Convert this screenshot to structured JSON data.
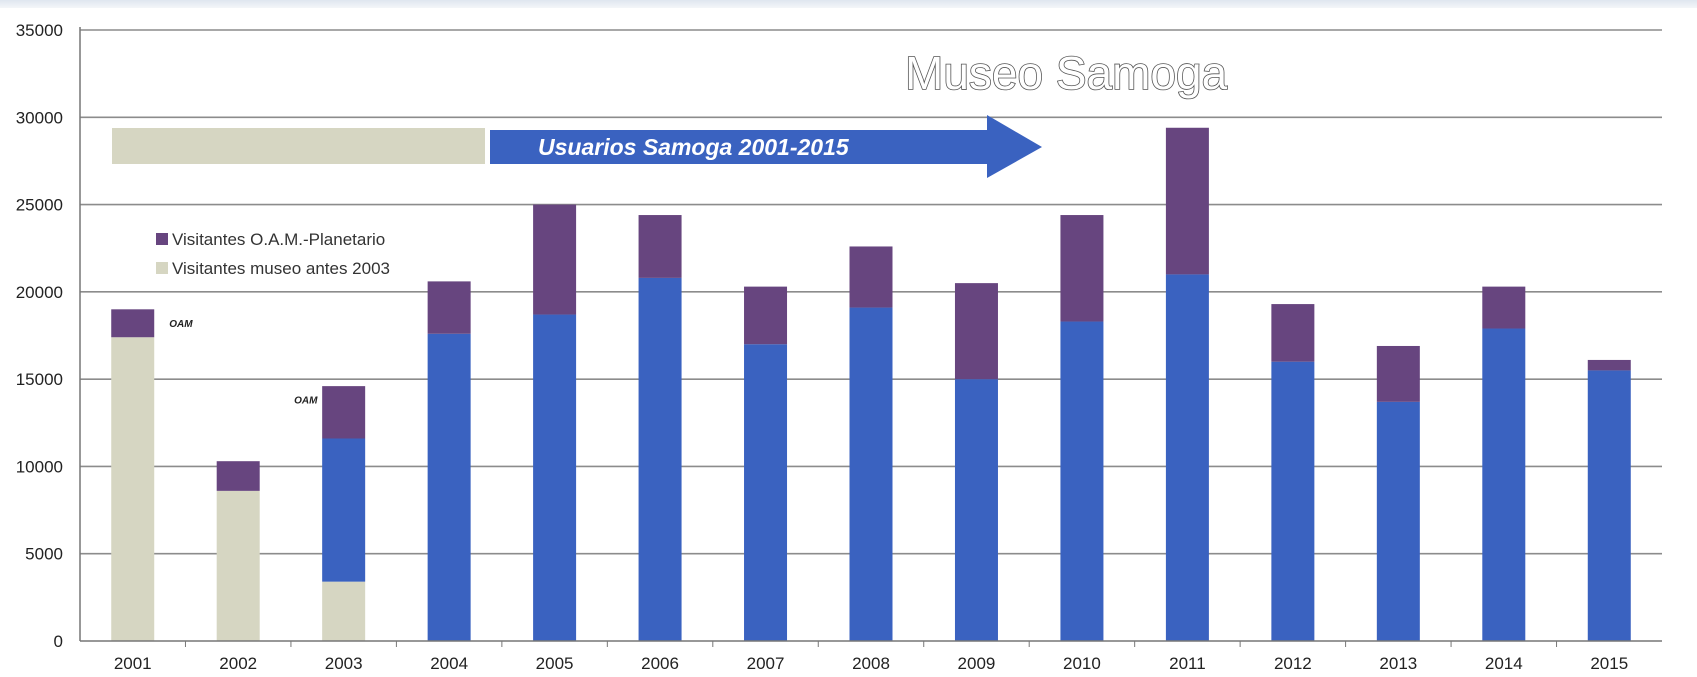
{
  "chart_data": {
    "type": "bar",
    "stacked": true,
    "title": "Museo Samoga",
    "subtitle": "Usuarios Samoga 2001-2015",
    "xlabel": "",
    "ylabel": "",
    "ylim": [
      0,
      35000
    ],
    "yticks": [
      0,
      5000,
      10000,
      15000,
      20000,
      25000,
      30000,
      35000
    ],
    "grid": true,
    "legend_position": "upper-left",
    "categories": [
      "2001",
      "2002",
      "2003",
      "2004",
      "2005",
      "2006",
      "2007",
      "2008",
      "2009",
      "2010",
      "2011",
      "2012",
      "2013",
      "2014",
      "2015"
    ],
    "series": [
      {
        "name": "Visitantes museo antes 2003",
        "color": "#d6d6c2",
        "legend": true,
        "values": [
          17400,
          8600,
          3400,
          0,
          0,
          0,
          0,
          0,
          0,
          0,
          0,
          0,
          0,
          0,
          0
        ]
      },
      {
        "name": "",
        "color": "#3a62c0",
        "legend": false,
        "values": [
          0,
          0,
          8200,
          17600,
          18700,
          20800,
          17000,
          19100,
          15000,
          18300,
          21000,
          16000,
          13700,
          17900,
          15500
        ]
      },
      {
        "name": "Visitantes O.A.M.-Planetario",
        "color": "#67457f",
        "legend": true,
        "values": [
          1600,
          1700,
          3000,
          3000,
          6300,
          3600,
          3300,
          3500,
          5500,
          6100,
          8400,
          3300,
          3200,
          2400,
          600
        ]
      }
    ],
    "annotations": [
      {
        "text": "OAM",
        "category": "2001"
      },
      {
        "text": "OAM",
        "category": "2003"
      }
    ],
    "colors": {
      "grid": "#8c8c8c",
      "arrow": "#3a62c0",
      "band": "#d6d6c2"
    }
  }
}
